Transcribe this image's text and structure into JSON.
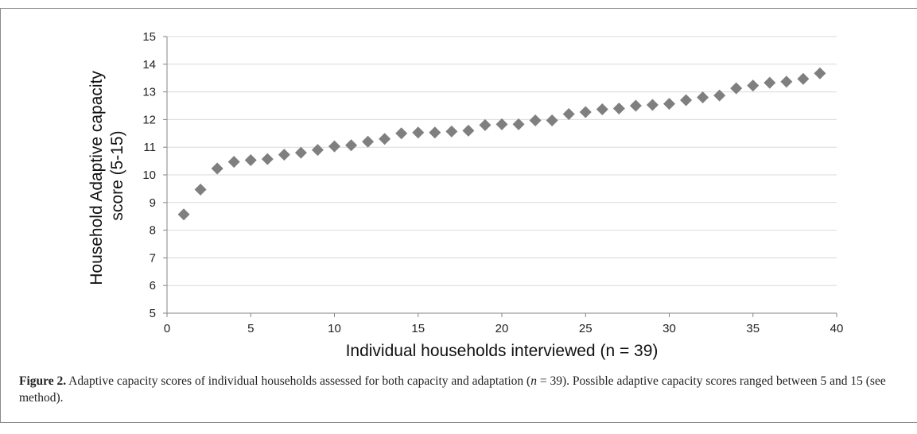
{
  "chart_data": {
    "type": "scatter",
    "title": "",
    "xlabel": "Individual households interviewed (n = 39)",
    "ylabel_lines": [
      "Household Adaptive capacity",
      "score (5-15)"
    ],
    "xlim": [
      0,
      40
    ],
    "ylim": [
      5,
      15
    ],
    "x_ticks": [
      0,
      5,
      10,
      15,
      20,
      25,
      30,
      35,
      40
    ],
    "y_ticks": [
      5,
      6,
      7,
      8,
      9,
      10,
      11,
      12,
      13,
      14,
      15
    ],
    "grid": true,
    "marker": "diamond",
    "marker_color": "#7f7f7f",
    "x": [
      1,
      2,
      3,
      4,
      5,
      6,
      7,
      8,
      9,
      10,
      11,
      12,
      13,
      14,
      15,
      16,
      17,
      18,
      19,
      20,
      21,
      22,
      23,
      24,
      25,
      26,
      27,
      28,
      29,
      30,
      31,
      32,
      33,
      34,
      35,
      36,
      37,
      38,
      39
    ],
    "y": [
      8.57,
      9.47,
      10.23,
      10.47,
      10.53,
      10.57,
      10.73,
      10.8,
      10.9,
      11.03,
      11.07,
      11.2,
      11.3,
      11.5,
      11.53,
      11.53,
      11.57,
      11.6,
      11.8,
      11.83,
      11.83,
      11.97,
      11.97,
      12.2,
      12.27,
      12.37,
      12.4,
      12.5,
      12.53,
      12.57,
      12.7,
      12.8,
      12.87,
      13.13,
      13.23,
      13.33,
      13.37,
      13.47,
      13.67
    ]
  },
  "caption": {
    "label": "Figure 2.",
    "text_1": " Adaptive capacity scores of individual households assessed for both capacity and adaptation (",
    "n_symbol": "n",
    "text_2": " = 39). Possible adaptive capacity scores ranged between 5 and 15 (see method)."
  }
}
